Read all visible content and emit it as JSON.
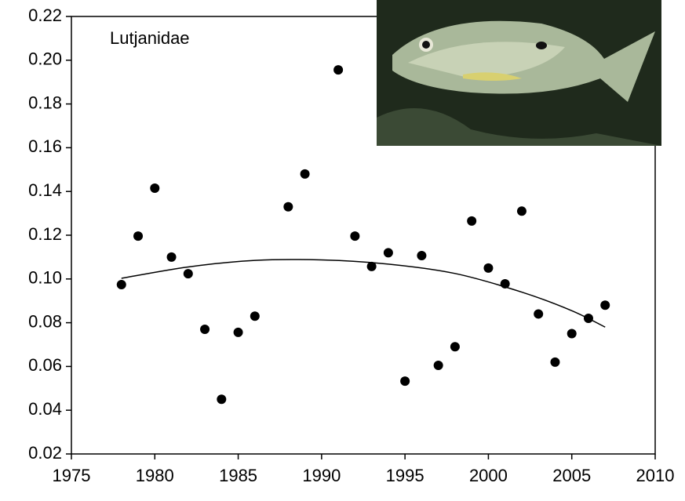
{
  "chart_data": {
    "type": "scatter",
    "annotation": "Lutjanidae",
    "x": [
      1978,
      1979,
      1980,
      1981,
      1982,
      1983,
      1984,
      1985,
      1986,
      1988,
      1989,
      1991,
      1992,
      1993,
      1994,
      1995,
      1996,
      1997,
      1998,
      1999,
      2000,
      2001,
      2002,
      2003,
      2004,
      2005,
      2006,
      2007
    ],
    "values": [
      0.0974,
      0.1196,
      0.1415,
      0.11,
      0.1024,
      0.077,
      0.045,
      0.0756,
      0.083,
      0.133,
      0.148,
      0.1956,
      0.1196,
      0.1057,
      0.112,
      0.0533,
      0.1107,
      0.0605,
      0.069,
      0.1265,
      0.105,
      0.0978,
      0.131,
      0.084,
      0.062,
      0.075,
      0.082,
      0.088
    ],
    "color": "#000000",
    "trend": {
      "x": [
        1978,
        1982,
        1986,
        1990,
        1994,
        1998,
        2002,
        2005,
        2007
      ],
      "values": [
        0.1003,
        0.1055,
        0.1085,
        0.1087,
        0.1068,
        0.1025,
        0.094,
        0.0855,
        0.078
      ],
      "color": "#000000"
    },
    "xlim": [
      1975,
      2010
    ],
    "xticks": [
      1975,
      1980,
      1985,
      1990,
      1995,
      2000,
      2005,
      2010
    ],
    "ylim": [
      0.02,
      0.22
    ],
    "yticks": [
      0.02,
      0.04,
      0.06,
      0.08,
      {
        "value": 0.1,
        "label": "0.10"
      },
      0.12,
      0.14,
      0.16,
      0.18,
      {
        "value": 0.2,
        "label": "0.20"
      },
      0.22
    ]
  }
}
